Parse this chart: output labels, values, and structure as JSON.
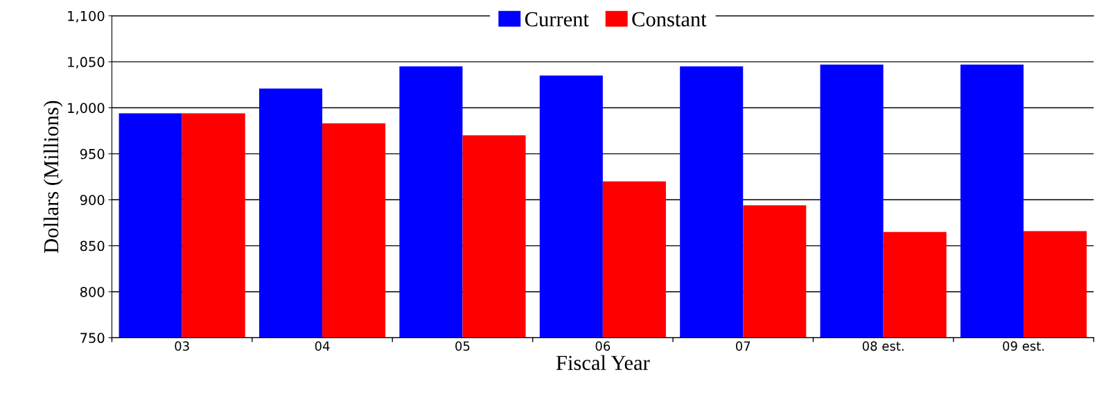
{
  "chart_data": {
    "type": "bar",
    "xlabel": "Fiscal Year",
    "ylabel": "Dollars (Millions)",
    "categories": [
      "03",
      "04",
      "05",
      "06",
      "07",
      "08 est.",
      "09 est."
    ],
    "series": [
      {
        "name": "Current",
        "color": "#0000ff",
        "values": [
          994,
          1021,
          1045,
          1035,
          1045,
          1047,
          1047
        ]
      },
      {
        "name": "Constant",
        "color": "#ff0000",
        "values": [
          994,
          983,
          970,
          920,
          894,
          865,
          866
        ]
      }
    ],
    "ylim": [
      750,
      1100
    ],
    "yticks": [
      750,
      800,
      850,
      900,
      950,
      {
        "value": 1000,
        "label": "1,000"
      },
      {
        "value": 1050,
        "label": "1,050"
      },
      {
        "value": 1100,
        "label": "1,100"
      }
    ],
    "grid": "y",
    "legend": "top"
  }
}
